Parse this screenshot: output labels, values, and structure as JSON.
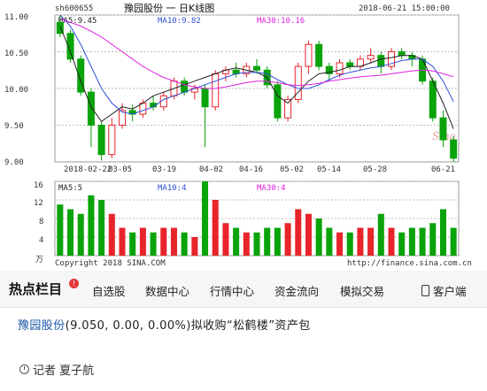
{
  "chart": {
    "code": "sh600655",
    "title": "豫园股份 一 日K线图",
    "datetime": "2018-06-21 15:00:00",
    "price_ma": [
      {
        "label": "MA5:9.45",
        "color": "#1f1f1f"
      },
      {
        "label": "MA10:9.82",
        "color": "#2f4fd6"
      },
      {
        "label": "MA30:10.16",
        "color": "#e020e0"
      }
    ],
    "volume_ma": [
      {
        "label": "MA5:5",
        "color": "#1f1f1f"
      },
      {
        "label": "MA10:4",
        "color": "#2f4fd6"
      },
      {
        "label": "MA30:4",
        "color": "#e020e0"
      }
    ],
    "y_ticks": [
      "11.00",
      "10.50",
      "10.00",
      "9.50",
      "9.00"
    ],
    "vol_ticks": [
      "16",
      "12",
      "8",
      "4"
    ],
    "vol_unit": "万",
    "x_labels": [
      "2018-02-22",
      "03-05",
      "03-19",
      "04-02",
      "04-16",
      "05-02",
      "05-14",
      "05-28",
      "06-21"
    ],
    "copyright": "Copyright 2018 SINA.COM",
    "source": "http://finance.sina.com.cn",
    "watermark": "Sina",
    "up_color": "#e8242b",
    "down_color": "#0aa30a"
  },
  "chart_data": {
    "type": "candlestick",
    "ylim": [
      9.0,
      11.0
    ],
    "vol_ylim": [
      0,
      16
    ],
    "series": [
      {
        "name": "MA5",
        "values": [
          10.85,
          10.5,
          10.1,
          9.75,
          9.55,
          9.65,
          9.75,
          9.72,
          9.8,
          9.9,
          9.95,
          10.0,
          10.05,
          10.1,
          10.15,
          10.2,
          10.25,
          10.28,
          10.25,
          10.22,
          10.15,
          9.9,
          9.8,
          9.95,
          10.1,
          10.2,
          10.22,
          10.25,
          10.3,
          10.3,
          10.35,
          10.4,
          10.42,
          10.45,
          10.45,
          10.4,
          10.1,
          9.8,
          9.45
        ]
      },
      {
        "name": "MA10",
        "values": [
          11.0,
          10.85,
          10.6,
          10.3,
          10.0,
          9.8,
          9.68,
          9.65,
          9.7,
          9.75,
          9.85,
          9.9,
          9.95,
          10.0,
          10.05,
          10.1,
          10.15,
          10.2,
          10.22,
          10.22,
          10.2,
          10.12,
          10.05,
          10.0,
          10.0,
          10.05,
          10.12,
          10.18,
          10.22,
          10.25,
          10.28,
          10.3,
          10.34,
          10.38,
          10.4,
          10.4,
          10.3,
          10.1,
          9.82
        ]
      },
      {
        "name": "MA30",
        "values": [
          10.95,
          10.9,
          10.85,
          10.78,
          10.7,
          10.6,
          10.5,
          10.4,
          10.3,
          10.22,
          10.15,
          10.1,
          10.05,
          10.02,
          10.0,
          10.0,
          10.02,
          10.05,
          10.08,
          10.1,
          10.1,
          10.08,
          10.05,
          10.04,
          10.05,
          10.07,
          10.1,
          10.12,
          10.14,
          10.16,
          10.17,
          10.18,
          10.2,
          10.22,
          10.24,
          10.25,
          10.24,
          10.2,
          10.16
        ]
      }
    ],
    "candles": [
      {
        "o": 10.9,
        "c": 10.75,
        "h": 11.0,
        "l": 10.7,
        "v": 11
      },
      {
        "o": 10.75,
        "c": 10.4,
        "h": 10.8,
        "l": 10.35,
        "v": 10
      },
      {
        "o": 10.4,
        "c": 9.95,
        "h": 10.45,
        "l": 9.9,
        "v": 9
      },
      {
        "o": 9.95,
        "c": 9.5,
        "h": 10.0,
        "l": 9.2,
        "v": 13
      },
      {
        "o": 9.5,
        "c": 9.1,
        "h": 9.55,
        "l": 9.02,
        "v": 12
      },
      {
        "o": 9.1,
        "c": 9.5,
        "h": 9.6,
        "l": 9.05,
        "v": 9
      },
      {
        "o": 9.5,
        "c": 9.7,
        "h": 9.8,
        "l": 9.45,
        "v": 6
      },
      {
        "o": 9.7,
        "c": 9.65,
        "h": 9.78,
        "l": 9.55,
        "v": 5
      },
      {
        "o": 9.65,
        "c": 9.8,
        "h": 9.85,
        "l": 9.6,
        "v": 6
      },
      {
        "o": 9.8,
        "c": 9.75,
        "h": 9.9,
        "l": 9.7,
        "v": 5
      },
      {
        "o": 9.75,
        "c": 9.9,
        "h": 9.95,
        "l": 9.7,
        "v": 6
      },
      {
        "o": 9.9,
        "c": 10.1,
        "h": 10.15,
        "l": 9.85,
        "v": 6
      },
      {
        "o": 10.1,
        "c": 9.95,
        "h": 10.15,
        "l": 9.9,
        "v": 5
      },
      {
        "o": 9.95,
        "c": 10.0,
        "h": 10.05,
        "l": 9.85,
        "v": 4
      },
      {
        "o": 10.0,
        "c": 9.75,
        "h": 10.05,
        "l": 9.2,
        "v": 16
      },
      {
        "o": 9.75,
        "c": 10.2,
        "h": 10.25,
        "l": 9.7,
        "v": 12
      },
      {
        "o": 10.2,
        "c": 10.25,
        "h": 10.3,
        "l": 10.1,
        "v": 7
      },
      {
        "o": 10.25,
        "c": 10.2,
        "h": 10.35,
        "l": 10.15,
        "v": 6
      },
      {
        "o": 10.2,
        "c": 10.3,
        "h": 10.35,
        "l": 10.15,
        "v": 5
      },
      {
        "o": 10.3,
        "c": 10.25,
        "h": 10.4,
        "l": 10.2,
        "v": 5
      },
      {
        "o": 10.25,
        "c": 10.05,
        "h": 10.3,
        "l": 10.0,
        "v": 6
      },
      {
        "o": 10.05,
        "c": 9.6,
        "h": 10.1,
        "l": 9.55,
        "v": 6
      },
      {
        "o": 9.6,
        "c": 9.85,
        "h": 9.9,
        "l": 9.55,
        "v": 7
      },
      {
        "o": 9.85,
        "c": 10.3,
        "h": 10.35,
        "l": 9.8,
        "v": 10
      },
      {
        "o": 10.3,
        "c": 10.6,
        "h": 10.65,
        "l": 10.2,
        "v": 9
      },
      {
        "o": 10.6,
        "c": 10.3,
        "h": 10.65,
        "l": 10.25,
        "v": 8
      },
      {
        "o": 10.3,
        "c": 10.2,
        "h": 10.35,
        "l": 10.1,
        "v": 6
      },
      {
        "o": 10.2,
        "c": 10.35,
        "h": 10.4,
        "l": 10.15,
        "v": 5
      },
      {
        "o": 10.35,
        "c": 10.3,
        "h": 10.4,
        "l": 10.25,
        "v": 5
      },
      {
        "o": 10.3,
        "c": 10.4,
        "h": 10.45,
        "l": 10.25,
        "v": 6
      },
      {
        "o": 10.4,
        "c": 10.45,
        "h": 10.55,
        "l": 10.35,
        "v": 6
      },
      {
        "o": 10.45,
        "c": 10.3,
        "h": 10.5,
        "l": 10.2,
        "v": 9
      },
      {
        "o": 10.3,
        "c": 10.5,
        "h": 10.55,
        "l": 10.25,
        "v": 6
      },
      {
        "o": 10.5,
        "c": 10.45,
        "h": 10.55,
        "l": 10.4,
        "v": 5
      },
      {
        "o": 10.45,
        "c": 10.4,
        "h": 10.5,
        "l": 10.3,
        "v": 6
      },
      {
        "o": 10.4,
        "c": 10.1,
        "h": 10.45,
        "l": 10.05,
        "v": 6
      },
      {
        "o": 10.1,
        "c": 9.6,
        "h": 10.15,
        "l": 9.55,
        "v": 7
      },
      {
        "o": 9.6,
        "c": 9.3,
        "h": 9.7,
        "l": 9.2,
        "v": 10
      },
      {
        "o": 9.3,
        "c": 9.05,
        "h": 9.35,
        "l": 9.0,
        "v": 6
      }
    ]
  },
  "nav": {
    "brand": "热点栏目",
    "badge": "!",
    "items": [
      "自选股",
      "数据中心",
      "行情中心",
      "资金流向",
      "模拟交易"
    ],
    "client": "客户端"
  },
  "article": {
    "stock_name": "豫园股份",
    "quote_values": "(9.050, 0.00, 0.00%)",
    "headline": "拟收购“松鹤楼”资产包",
    "byline": "记者 夏子航"
  }
}
